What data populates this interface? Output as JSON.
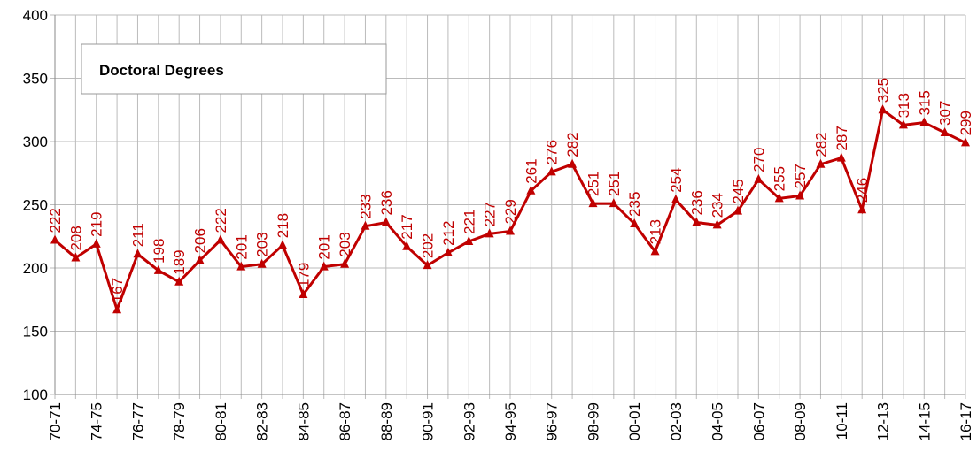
{
  "chart_data": {
    "type": "line",
    "title": "Doctoral Degrees",
    "categories": [
      "70-71",
      null,
      "74-75",
      null,
      "76-77",
      null,
      "78-79",
      null,
      "80-81",
      null,
      "82-83",
      null,
      "84-85",
      null,
      "86-87",
      null,
      "88-89",
      null,
      "90-91",
      null,
      "92-93",
      null,
      "94-95",
      null,
      "96-97",
      null,
      "98-99",
      null,
      "00-01",
      null,
      "02-03",
      null,
      "04-05",
      null,
      "06-07",
      null,
      "08-09",
      null,
      "10-11",
      null,
      "12-13",
      null,
      "14-15",
      null,
      "16-17"
    ],
    "values": [
      222,
      208,
      219,
      167,
      211,
      198,
      189,
      206,
      222,
      201,
      203,
      218,
      179,
      201,
      203,
      233,
      236,
      217,
      202,
      212,
      221,
      227,
      229,
      261,
      276,
      282,
      251,
      251,
      235,
      213,
      254,
      236,
      234,
      245,
      270,
      255,
      257,
      282,
      287,
      246,
      325,
      313,
      315,
      307,
      299
    ],
    "color": "#c00000",
    "ylim": [
      100,
      400
    ],
    "yticks": [
      100,
      150,
      200,
      250,
      300,
      350,
      400
    ],
    "grid": true
  }
}
